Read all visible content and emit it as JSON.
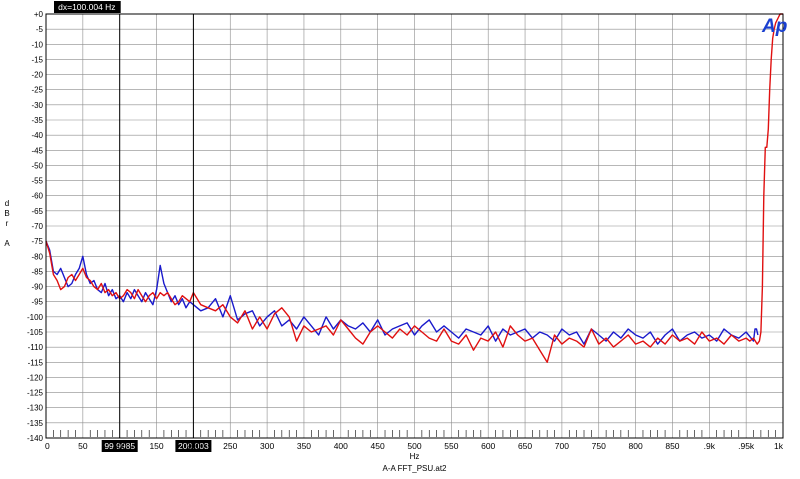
{
  "chart_data": {
    "type": "line",
    "xlabel": "Hz",
    "ylabel": [
      "d",
      "B",
      "r",
      "",
      "A"
    ],
    "footer": "A-A FFT_PSU.at2",
    "logo_text": "Ap",
    "xlim": [
      0,
      1000
    ],
    "ylim": [
      -140,
      0
    ],
    "grid": true,
    "x_ticks": [
      "0",
      "50",
      "100",
      "150",
      "200",
      "250",
      "300",
      "350",
      "400",
      "450",
      "500",
      "550",
      "600",
      "650",
      "700",
      "750",
      "800",
      "850",
      ".9k",
      ".95k",
      "1k"
    ],
    "y_ticks": [
      "+0",
      "-5",
      "-10",
      "-15",
      "-20",
      "-25",
      "-30",
      "-35",
      "-40",
      "-45",
      "-50",
      "-55",
      "-60",
      "-65",
      "-70",
      "-75",
      "-80",
      "-85",
      "-90",
      "-95",
      "-100",
      "-105",
      "-110",
      "-115",
      "-120",
      "-125",
      "-130",
      "-135",
      "-140"
    ],
    "cursors": {
      "dx_label": "dx=100.004  Hz",
      "c1_label": "99.9985",
      "c2_label": "200.003",
      "c1_x": 99.9985,
      "c2_x": 200.003
    },
    "colors": {
      "blue": "#1a1acc",
      "red": "#e01010",
      "grid": "#8c8c8c",
      "logo": "#1a3fd0"
    },
    "series": [
      {
        "color": "blue",
        "x": [
          0,
          5,
          10,
          15,
          20,
          25,
          30,
          35,
          40,
          45,
          50,
          55,
          60,
          65,
          70,
          75,
          80,
          85,
          90,
          95,
          100,
          105,
          110,
          115,
          120,
          125,
          130,
          135,
          140,
          145,
          150,
          155,
          160,
          165,
          170,
          175,
          180,
          185,
          190,
          195,
          200,
          210,
          220,
          230,
          240,
          250,
          260,
          270,
          280,
          290,
          300,
          310,
          320,
          330,
          340,
          350,
          360,
          370,
          380,
          390,
          400,
          410,
          420,
          430,
          440,
          450,
          460,
          470,
          480,
          490,
          500,
          510,
          520,
          530,
          540,
          550,
          560,
          570,
          580,
          590,
          600,
          610,
          620,
          630,
          640,
          650,
          660,
          670,
          680,
          690,
          700,
          710,
          720,
          730,
          740,
          750,
          760,
          770,
          780,
          790,
          800,
          810,
          820,
          830,
          840,
          850,
          860,
          870,
          880,
          890,
          900,
          910,
          920,
          930,
          940,
          950,
          960,
          962,
          964,
          966
        ],
        "y": [
          -75,
          -78,
          -85,
          -86,
          -84,
          -87,
          -90,
          -89,
          -86,
          -84,
          -80,
          -86,
          -89,
          -88,
          -91,
          -92,
          -89,
          -93,
          -91,
          -94,
          -93,
          -95,
          -92,
          -94,
          -91,
          -93,
          -95,
          -92,
          -94,
          -96,
          -91,
          -83,
          -89,
          -92,
          -95,
          -93,
          -96,
          -94,
          -97,
          -95,
          -96,
          -98,
          -97,
          -94,
          -100,
          -93,
          -101,
          -99,
          -98,
          -103,
          -100,
          -98,
          -103,
          -101,
          -104,
          -100,
          -103,
          -106,
          -100,
          -104,
          -101,
          -103,
          -104,
          -102,
          -105,
          -101,
          -106,
          -104,
          -103,
          -102,
          -106,
          -103,
          -101,
          -105,
          -103,
          -105,
          -107,
          -104,
          -105,
          -106,
          -103,
          -108,
          -104,
          -106,
          -105,
          -104,
          -107,
          -105,
          -106,
          -108,
          -104,
          -106,
          -105,
          -109,
          -104,
          -106,
          -108,
          -105,
          -107,
          -104,
          -106,
          -107,
          -105,
          -109,
          -106,
          -104,
          -108,
          -106,
          -105,
          -107,
          -106,
          -108,
          -104,
          -106,
          -107,
          -105,
          -108,
          -104,
          -104,
          -106
        ]
      },
      {
        "color": "red",
        "x": [
          0,
          5,
          10,
          15,
          20,
          25,
          30,
          35,
          40,
          45,
          50,
          55,
          60,
          65,
          70,
          75,
          80,
          85,
          90,
          95,
          100,
          105,
          110,
          115,
          120,
          125,
          130,
          135,
          140,
          145,
          150,
          155,
          160,
          165,
          170,
          175,
          180,
          185,
          190,
          195,
          200,
          210,
          220,
          230,
          240,
          250,
          260,
          270,
          280,
          290,
          300,
          310,
          320,
          330,
          340,
          350,
          360,
          370,
          380,
          390,
          400,
          410,
          420,
          430,
          440,
          450,
          460,
          470,
          480,
          490,
          500,
          510,
          520,
          530,
          540,
          550,
          560,
          570,
          580,
          590,
          600,
          610,
          620,
          630,
          640,
          650,
          660,
          670,
          680,
          690,
          700,
          710,
          720,
          730,
          740,
          750,
          760,
          770,
          780,
          790,
          800,
          810,
          820,
          830,
          840,
          850,
          860,
          870,
          880,
          890,
          900,
          910,
          920,
          930,
          940,
          950,
          955,
          960,
          965,
          968,
          970,
          972,
          974,
          976,
          978,
          980,
          982,
          984,
          986,
          988,
          990,
          992,
          994,
          996,
          998,
          1000
        ],
        "y": [
          -75,
          -79,
          -86,
          -88,
          -91,
          -90,
          -87,
          -86,
          -88,
          -86,
          -84,
          -87,
          -88,
          -90,
          -91,
          -89,
          -92,
          -91,
          -93,
          -92,
          -94,
          -93,
          -91,
          -92,
          -94,
          -91,
          -93,
          -95,
          -93,
          -92,
          -94,
          -92,
          -93,
          -92,
          -94,
          -96,
          -95,
          -93,
          -94,
          -95,
          -92,
          -96,
          -97,
          -98,
          -96,
          -100,
          -102,
          -98,
          -104,
          -100,
          -104,
          -99,
          -97,
          -100,
          -108,
          -103,
          -105,
          -104,
          -103,
          -106,
          -101,
          -104,
          -107,
          -109,
          -105,
          -103,
          -105,
          -107,
          -104,
          -106,
          -103,
          -105,
          -107,
          -108,
          -104,
          -108,
          -109,
          -106,
          -111,
          -107,
          -108,
          -105,
          -110,
          -103,
          -106,
          -108,
          -107,
          -111,
          -115,
          -106,
          -109,
          -107,
          -108,
          -110,
          -104,
          -109,
          -107,
          -110,
          -108,
          -106,
          -109,
          -108,
          -110,
          -107,
          -109,
          -106,
          -108,
          -107,
          -109,
          -105,
          -108,
          -107,
          -109,
          -106,
          -108,
          -107,
          -108,
          -107,
          -109,
          -108,
          -105,
          -90,
          -60,
          -44,
          -44,
          -38,
          -25,
          -15,
          -8,
          -5,
          -3,
          -2,
          -1,
          0,
          0,
          0
        ]
      }
    ]
  }
}
